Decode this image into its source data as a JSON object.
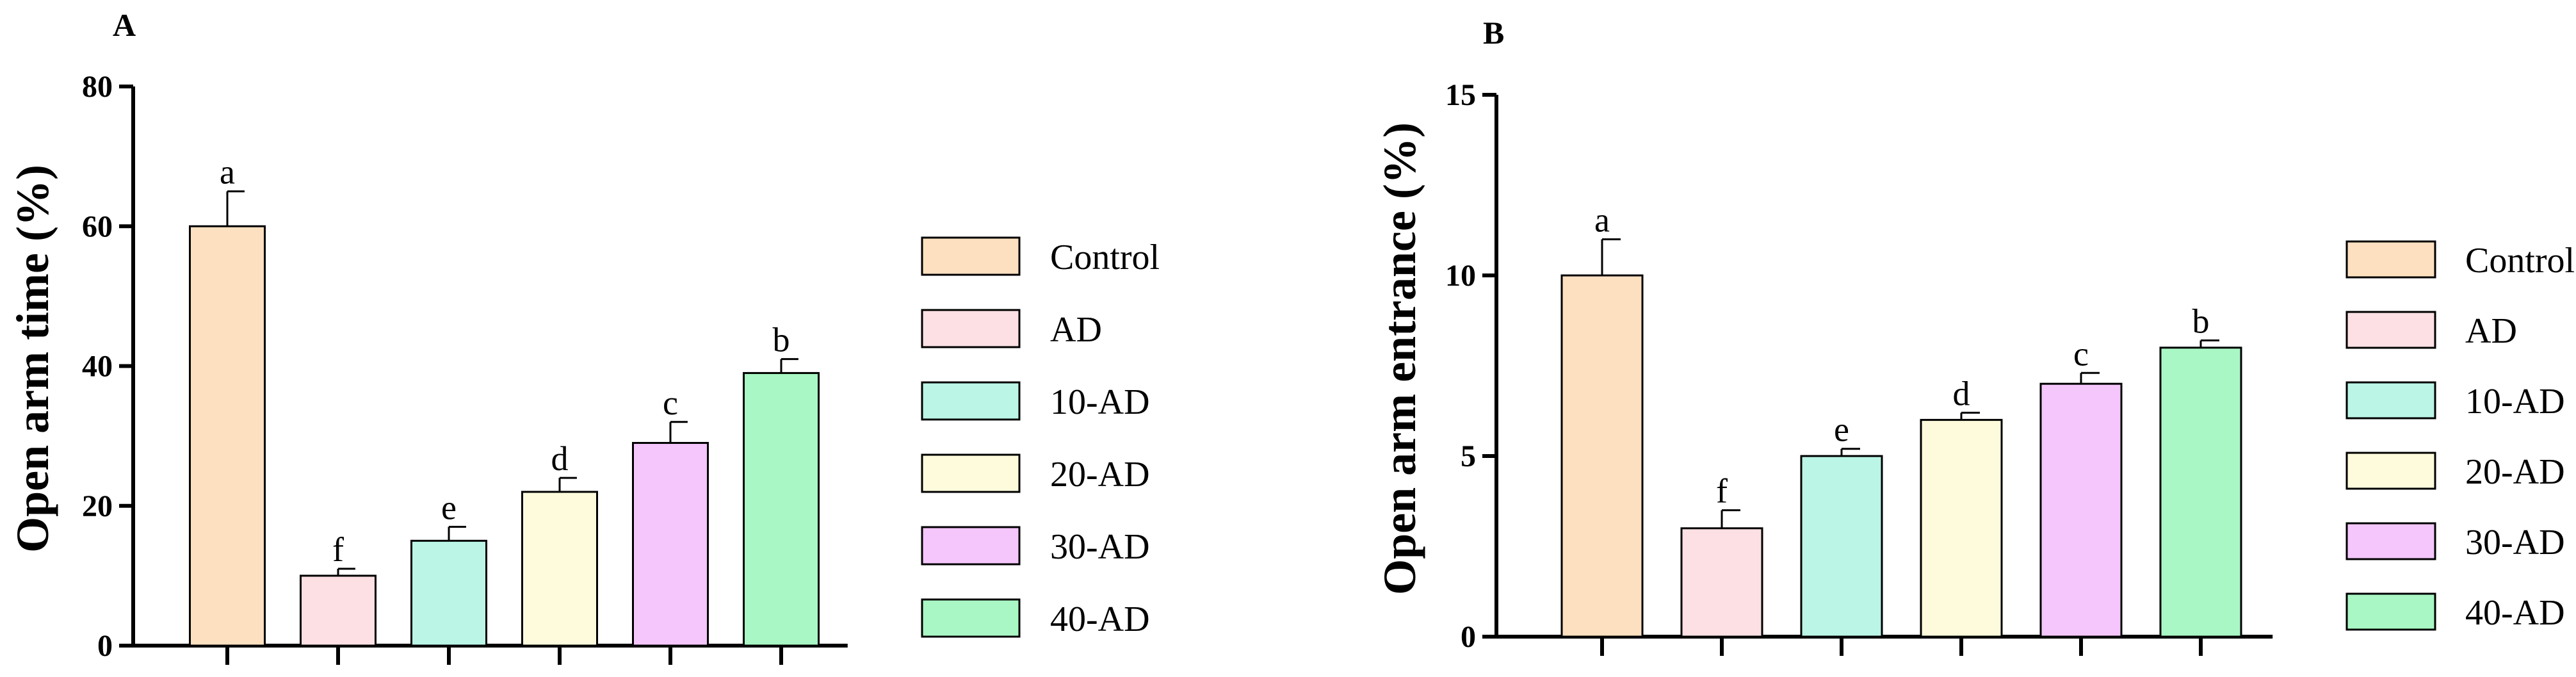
{
  "colors": {
    "axis": "#000000",
    "bar_stroke": "#000000",
    "Control": "#fde0c0",
    "AD": "#fde0e3",
    "10-AD": "#baf5e6",
    "20-AD": "#fefbdc",
    "30-AD": "#f4c6fb",
    "40-AD": "#a9f7c4"
  },
  "chart_data": [
    {
      "type": "bar",
      "panel": "A",
      "title": "",
      "xlabel": "",
      "ylabel": "Open arm time (%)",
      "ylim": [
        0,
        80
      ],
      "yticks": [
        0,
        20,
        40,
        60,
        80
      ],
      "categories": [
        "Control",
        "AD",
        "10-AD",
        "20-AD",
        "30-AD",
        "40-AD"
      ],
      "values": [
        60,
        10,
        15,
        22,
        29,
        39
      ],
      "errors": [
        5,
        1,
        2,
        2,
        3,
        2
      ],
      "significance": [
        "a",
        "f",
        "e",
        "d",
        "c",
        "b"
      ],
      "legend": [
        "Control",
        "AD",
        "10-AD",
        "20-AD",
        "30-AD",
        "40-AD"
      ],
      "legend_position": "right"
    },
    {
      "type": "bar",
      "panel": "B",
      "title": "",
      "xlabel": "",
      "ylabel": "Open arm entrance (%)",
      "ylim": [
        0,
        15
      ],
      "yticks": [
        0,
        5,
        10,
        15
      ],
      "categories": [
        "Control",
        "AD",
        "10-AD",
        "20-AD",
        "30-AD",
        "40-AD"
      ],
      "values": [
        10,
        3,
        5,
        6,
        7,
        8
      ],
      "errors": [
        1,
        0.5,
        0.2,
        0.2,
        0.3,
        0.2
      ],
      "significance": [
        "a",
        "f",
        "e",
        "d",
        "c",
        "b"
      ],
      "legend": [
        "Control",
        "AD",
        "10-AD",
        "20-AD",
        "30-AD",
        "40-AD"
      ],
      "legend_position": "right"
    }
  ]
}
